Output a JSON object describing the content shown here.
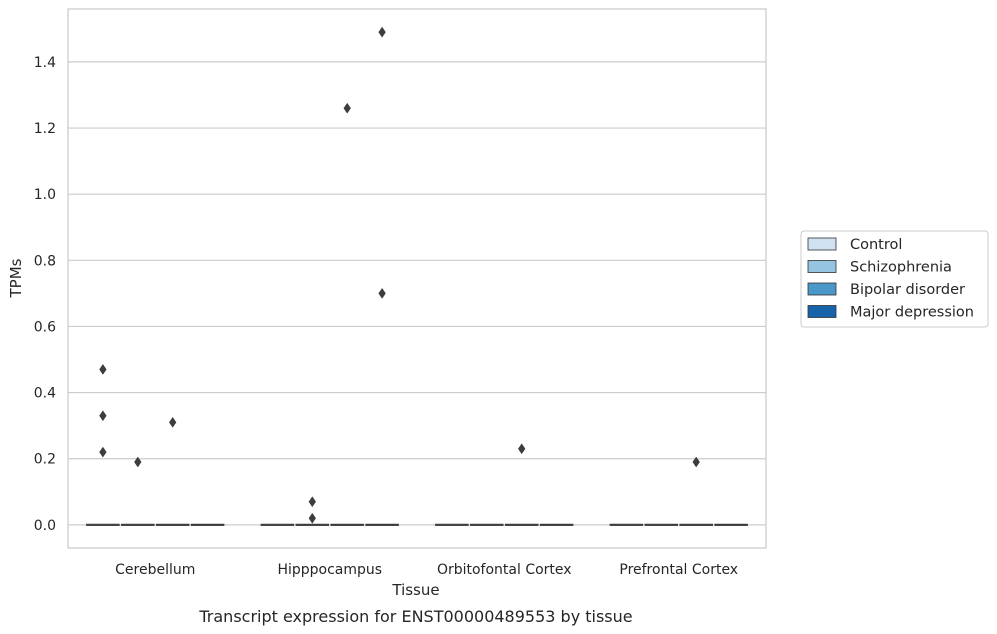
{
  "chart_data": {
    "type": "box",
    "title": "",
    "caption": "Transcript expression for ENST00000489553 by tissue",
    "xlabel": "Tissue",
    "ylabel": "TPMs",
    "ylim": [
      -0.07,
      1.56
    ],
    "yticks": [
      "0.0",
      "0.2",
      "0.4",
      "0.6",
      "0.8",
      "1.0",
      "1.2",
      "1.4"
    ],
    "ytick_values": [
      0,
      0.2,
      0.4,
      0.6,
      0.8,
      1.0,
      1.2,
      1.4
    ],
    "grid": true,
    "legend_position": "right",
    "categories": [
      "Cerebellum",
      "Hipppocampus",
      "Orbitofontal Cortex",
      "Prefrontal Cortex"
    ],
    "series": [
      {
        "name": "Control",
        "color": "#d0e1f1",
        "median": [
          0,
          0,
          0,
          0
        ],
        "outliers": [
          [
            0.47,
            0.33,
            0.22
          ],
          [],
          [],
          []
        ]
      },
      {
        "name": "Schizophrenia",
        "color": "#94c4df",
        "median": [
          0,
          0,
          0,
          0
        ],
        "outliers": [
          [
            0.19
          ],
          [
            0.07,
            0.02
          ],
          [],
          []
        ]
      },
      {
        "name": "Bipolar disorder",
        "color": "#4a98c9",
        "median": [
          0,
          0,
          0,
          0
        ],
        "outliers": [
          [
            0.31
          ],
          [
            1.26
          ],
          [
            0.23
          ],
          [
            0.19
          ]
        ]
      },
      {
        "name": "Major depression",
        "color": "#1764ab",
        "median": [
          0,
          0,
          0,
          0
        ],
        "outliers": [
          [],
          [
            1.49,
            0.7
          ],
          [],
          []
        ]
      }
    ]
  }
}
